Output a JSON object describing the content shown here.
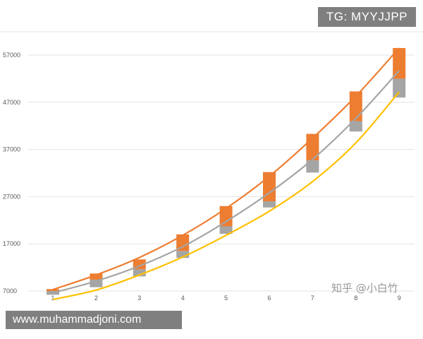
{
  "watermarks": {
    "top_right": "TG: MYYJJPP",
    "bottom_left": "www.muhammadjoni.com",
    "chart_credit": "知乎 @小白竹"
  },
  "colors": {
    "orange": "#ed7d31",
    "gray": "#a5a5a5",
    "yellow": "#ffc000",
    "grid": "#e3e3e3",
    "axis_text": "#595959"
  },
  "chart_data": {
    "type": "bar",
    "subtype": "stacked-floating-bar-with-trend-lines",
    "title": "",
    "xlabel": "",
    "ylabel": "",
    "categories": [
      "1",
      "2",
      "3",
      "4",
      "5",
      "6",
      "7",
      "8",
      "9"
    ],
    "yticks": [
      "7000",
      "17000",
      "27000",
      "37000",
      "47000",
      "57000"
    ],
    "ylim": [
      7000,
      57000
    ],
    "grid": true,
    "legend": "none",
    "bar_segments": [
      {
        "color": "orange",
        "low": [
          7000,
          9400,
          11600,
          15500,
          20700,
          26000,
          34700,
          43000,
          52000
        ],
        "high": [
          7400,
          10700,
          13700,
          19000,
          25000,
          32200,
          40300,
          49300,
          58500
        ]
      },
      {
        "color": "gray",
        "low": [
          6200,
          7800,
          10100,
          14000,
          19100,
          24700,
          32100,
          40800,
          48000
        ],
        "high": [
          7000,
          9400,
          11600,
          15500,
          20700,
          26000,
          34700,
          43000,
          52000
        ]
      }
    ],
    "series": [
      {
        "color": "orange",
        "values": [
          7300,
          10400,
          14100,
          18800,
          24500,
          31300,
          39400,
          48300,
          58500
        ]
      },
      {
        "color": "gray",
        "values": [
          6600,
          9100,
          12300,
          16400,
          21700,
          27800,
          34900,
          43600,
          53700
        ]
      },
      {
        "color": "yellow",
        "values": [
          5200,
          7200,
          10400,
          14200,
          18800,
          23900,
          30200,
          38400,
          49200
        ]
      }
    ]
  }
}
